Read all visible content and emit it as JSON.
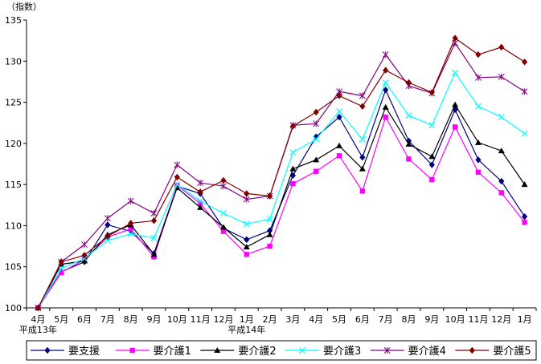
{
  "chart_data": {
    "type": "line",
    "title": "",
    "ylabel": "（指数）",
    "xlabel": "",
    "ylim": [
      100,
      135
    ],
    "yticks": [
      100,
      105,
      110,
      115,
      120,
      125,
      130,
      135
    ],
    "categories": [
      "4月",
      "5月",
      "6月",
      "7月",
      "8月",
      "9月",
      "10月",
      "11月",
      "12月",
      "1月",
      "2月",
      "3月",
      "4月",
      "5月",
      "6月",
      "7月",
      "8月",
      "9月",
      "10月",
      "11月",
      "12月",
      "1月"
    ],
    "year_labels": [
      {
        "text": "平成13年",
        "index": 0
      },
      {
        "text": "平成14年",
        "index": 9
      }
    ],
    "grid": false,
    "legend_position": "bottom",
    "series": [
      {
        "name": "要支援",
        "color": "#000080",
        "marker": "diamond",
        "values": [
          100.0,
          104.4,
          105.6,
          110.1,
          109.3,
          106.6,
          114.8,
          113.9,
          109.7,
          108.3,
          109.4,
          116.1,
          120.8,
          123.2,
          118.3,
          126.5,
          120.3,
          117.4,
          124.1,
          118.0,
          115.4,
          111.1
        ]
      },
      {
        "name": "要介護1",
        "color": "#ff00ff",
        "marker": "square",
        "values": [
          100.0,
          104.3,
          105.9,
          108.6,
          109.6,
          106.2,
          114.9,
          112.7,
          109.3,
          106.5,
          107.5,
          115.1,
          116.6,
          118.5,
          114.2,
          123.2,
          118.1,
          115.6,
          122.0,
          116.5,
          114.0,
          110.4
        ]
      },
      {
        "name": "要介護2",
        "color": "#000000",
        "marker": "triangle",
        "values": [
          100.0,
          105.3,
          105.7,
          108.9,
          110.1,
          106.5,
          114.6,
          112.2,
          109.8,
          107.4,
          108.9,
          116.9,
          118.0,
          119.7,
          116.9,
          124.4,
          119.9,
          118.4,
          124.7,
          120.1,
          119.1,
          115.0
        ]
      },
      {
        "name": "要介護3",
        "color": "#00ffff",
        "marker": "x",
        "values": [
          100.0,
          104.8,
          106.0,
          108.2,
          109.0,
          108.5,
          115.0,
          113.0,
          111.5,
          110.2,
          110.8,
          118.9,
          120.5,
          123.9,
          120.5,
          127.4,
          123.4,
          122.2,
          128.6,
          124.5,
          123.2,
          121.2
        ]
      },
      {
        "name": "要介護4",
        "color": "#800080",
        "marker": "star",
        "values": [
          100.0,
          105.6,
          107.7,
          110.9,
          113.0,
          111.5,
          117.4,
          115.2,
          114.8,
          113.2,
          113.6,
          122.2,
          122.4,
          126.3,
          125.8,
          130.8,
          127.0,
          126.1,
          132.2,
          128.0,
          128.1,
          126.3
        ]
      },
      {
        "name": "要介護5",
        "color": "#800000",
        "marker": "diamond",
        "values": [
          100.0,
          105.6,
          106.4,
          108.7,
          110.3,
          110.6,
          115.9,
          114.1,
          115.5,
          113.9,
          113.6,
          122.1,
          123.8,
          125.8,
          124.5,
          128.9,
          127.4,
          126.2,
          132.8,
          130.8,
          131.7,
          129.9
        ]
      }
    ]
  }
}
